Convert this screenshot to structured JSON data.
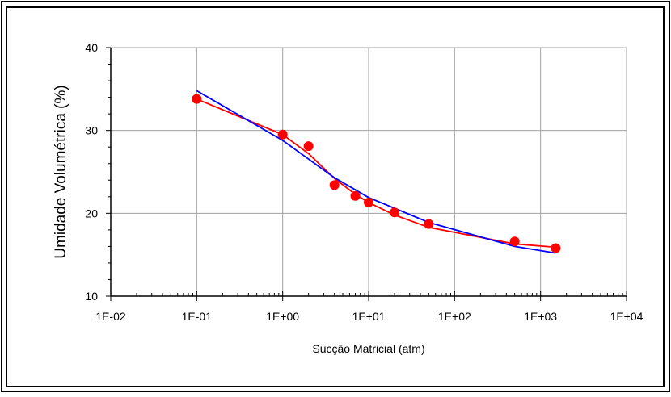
{
  "chart_data": {
    "type": "scatter",
    "xscale": "log",
    "xlabel": "Sucção Matricial (atm)",
    "ylabel": "Umidade Volumétrica (%)",
    "xlim": [
      0.01,
      10000
    ],
    "ylim": [
      10,
      40
    ],
    "x_ticks": [
      0.01,
      0.1,
      1,
      10,
      100,
      1000,
      10000
    ],
    "x_tick_labels": [
      "1E-02",
      "1E-01",
      "1E+00",
      "1E+01",
      "1E+02",
      "1E+03",
      "1E+04"
    ],
    "y_ticks": [
      10,
      20,
      30,
      40
    ],
    "y_tick_labels": [
      "10",
      "20",
      "30",
      "40"
    ],
    "grid": true,
    "legend": "none",
    "series": [
      {
        "kind": "points",
        "color": "#ff0000",
        "x": [
          0.1,
          1,
          2,
          4,
          7,
          10,
          20,
          50,
          500,
          1500
        ],
        "y": [
          33.8,
          29.5,
          28.1,
          23.4,
          22.1,
          21.3,
          20.1,
          18.7,
          16.6,
          15.8
        ]
      },
      {
        "kind": "line",
        "color": "#ff0000",
        "x": [
          0.1,
          1,
          2,
          4,
          7,
          10,
          20,
          50,
          500,
          1500
        ],
        "y": [
          33.8,
          29.5,
          27.2,
          24.2,
          22.3,
          21.3,
          19.8,
          18.3,
          16.3,
          15.9
        ]
      },
      {
        "kind": "line",
        "color": "#0000ff",
        "x": [
          0.1,
          1,
          4,
          10,
          50,
          500,
          1500
        ],
        "y": [
          34.8,
          28.8,
          24.3,
          21.9,
          18.9,
          16.0,
          15.2
        ]
      }
    ]
  }
}
